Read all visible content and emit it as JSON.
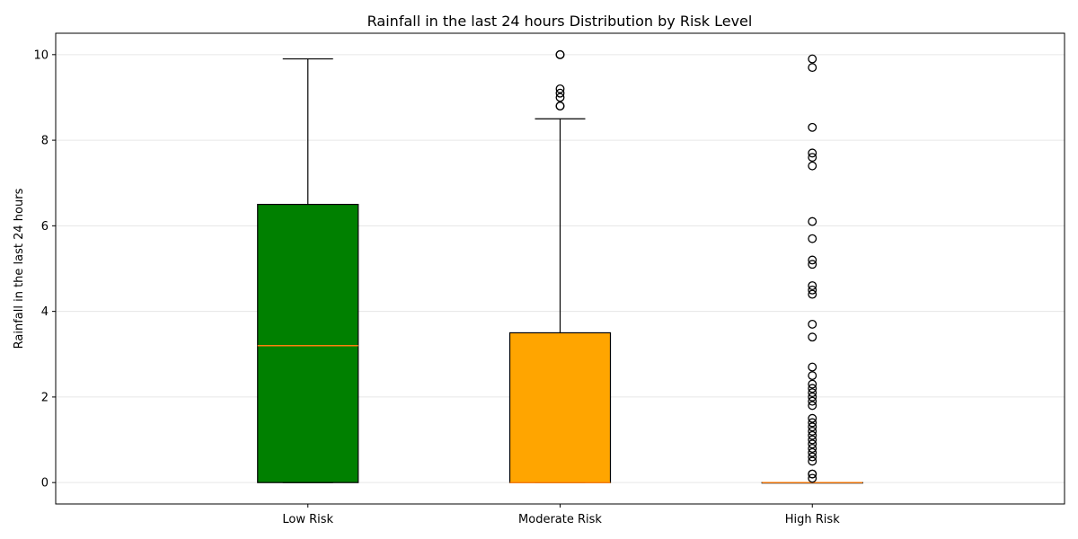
{
  "chart_data": {
    "type": "boxplot",
    "title": "Rainfall in the last 24 hours Distribution by Risk Level",
    "xlabel": "",
    "ylabel": "Rainfall in the last 24 hours",
    "ylim": [
      -0.5,
      10.5
    ],
    "yticks": [
      0,
      2,
      4,
      6,
      8,
      10
    ],
    "grid": "y",
    "categories": [
      "Low Risk",
      "Moderate Risk",
      "High Risk"
    ],
    "boxes": [
      {
        "category": "Low Risk",
        "color": "#008000",
        "whisker_low": 0,
        "q1": 0,
        "median": 3.2,
        "q3": 6.5,
        "whisker_high": 9.9,
        "outliers": []
      },
      {
        "category": "Moderate Risk",
        "color": "#FFA500",
        "whisker_low": 0,
        "q1": 0,
        "median": 0,
        "q3": 3.5,
        "whisker_high": 8.5,
        "outliers": [
          8.8,
          8.8,
          9.0,
          9.1,
          9.2,
          10.0,
          10.0
        ]
      },
      {
        "category": "High Risk",
        "color": "#FFA500",
        "whisker_low": 0,
        "q1": 0,
        "median": 0,
        "q3": 0,
        "whisker_high": 0,
        "outliers": [
          0.1,
          0.2,
          0.2,
          0.5,
          0.6,
          0.7,
          0.8,
          0.9,
          1.0,
          1.1,
          1.2,
          1.3,
          1.4,
          1.5,
          1.8,
          1.9,
          2.0,
          2.1,
          2.2,
          2.3,
          2.5,
          2.7,
          3.4,
          3.7,
          4.4,
          4.5,
          4.6,
          5.1,
          5.2,
          5.7,
          6.1,
          7.4,
          7.6,
          7.7,
          8.3,
          9.7,
          9.9
        ]
      }
    ],
    "median_color": "#ff7f0e"
  }
}
